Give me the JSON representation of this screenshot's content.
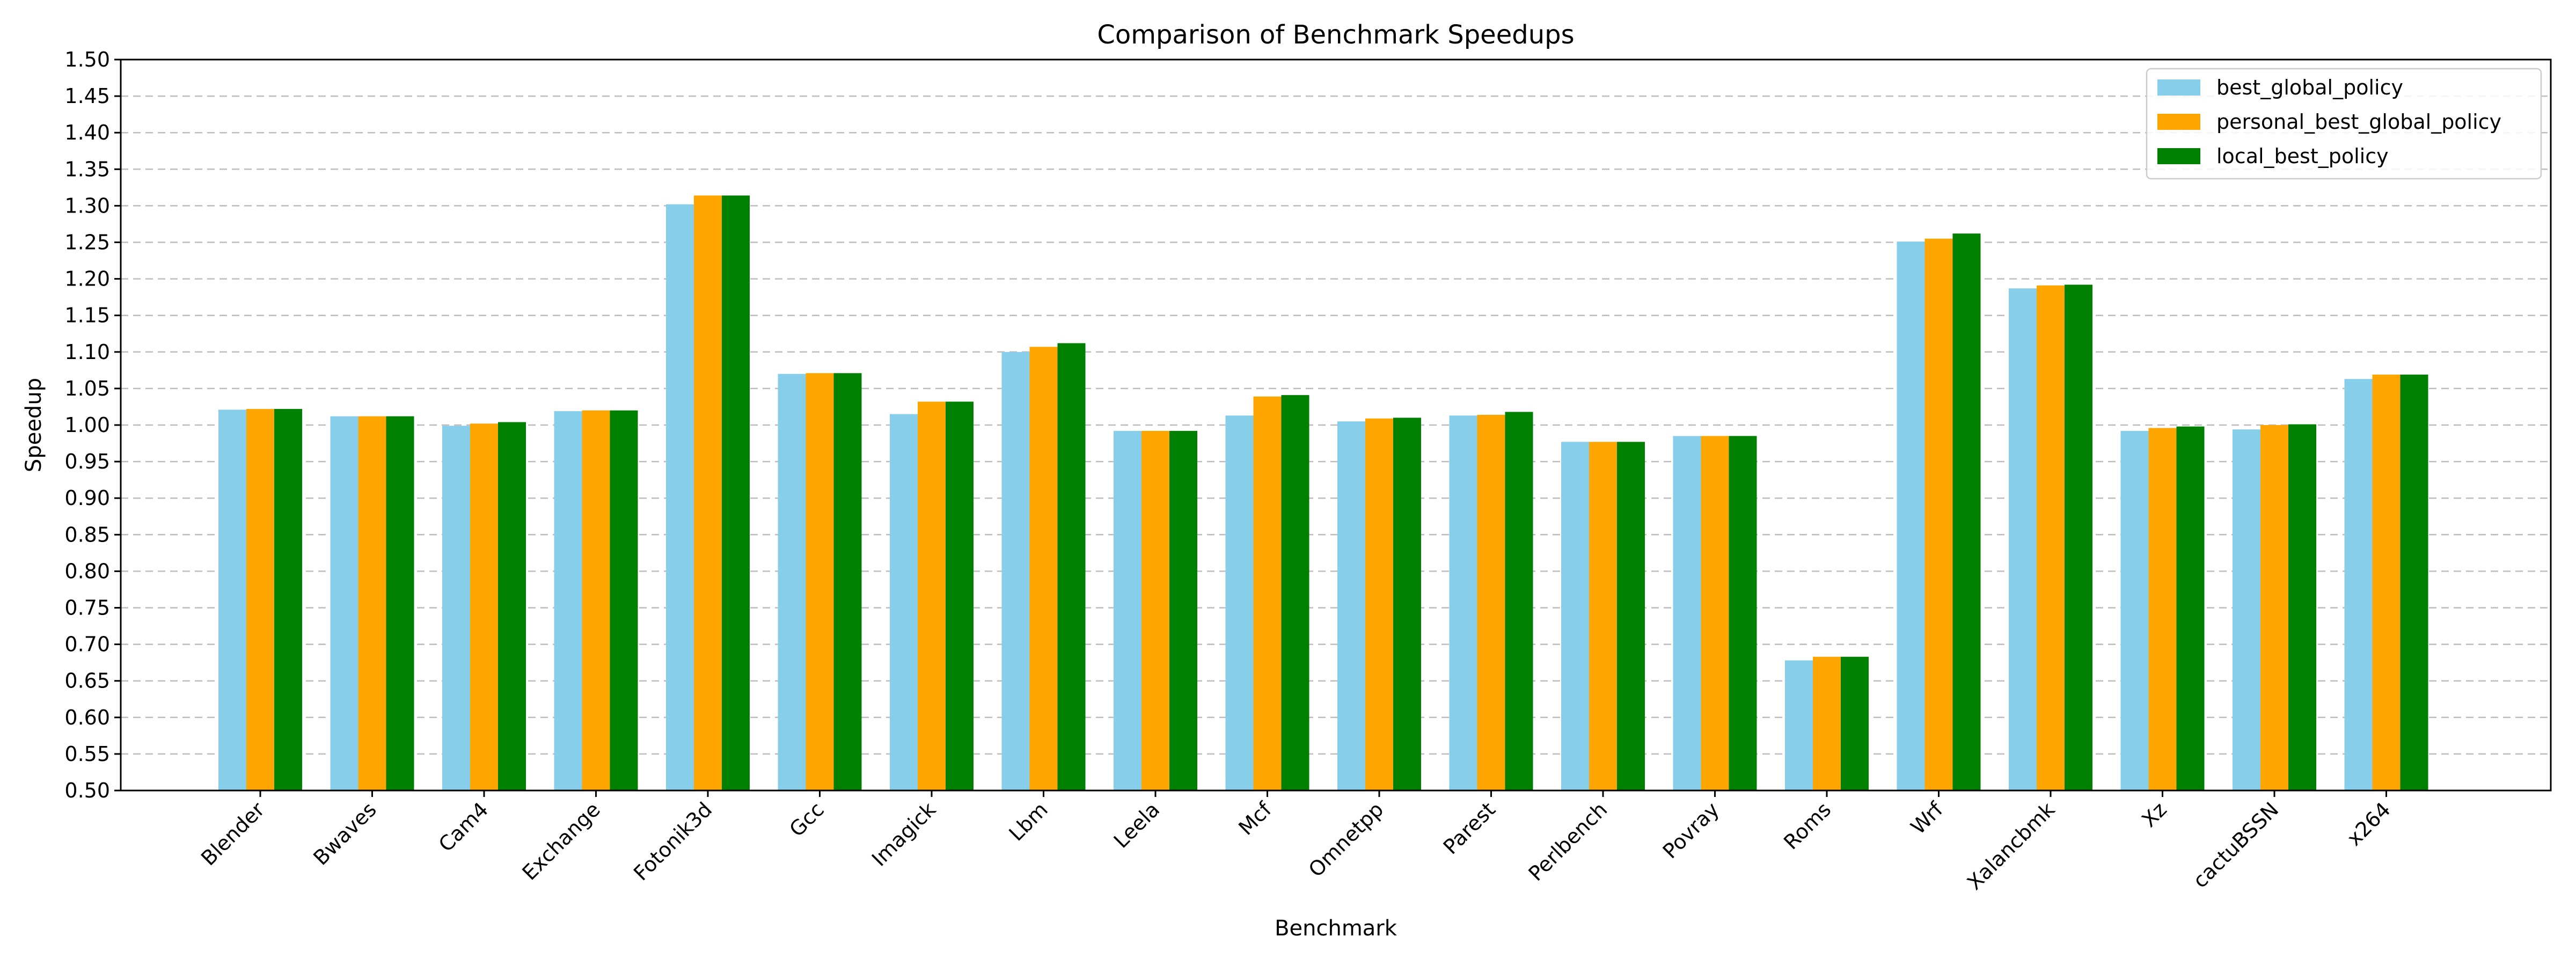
{
  "chart_data": {
    "type": "bar",
    "title": "Comparison of Benchmark Speedups",
    "xlabel": "Benchmark",
    "ylabel": "Speedup",
    "ylim": [
      0.5,
      1.5
    ],
    "y_tick_step": 0.05,
    "grid": "y-dashed",
    "legend_position": "top-right",
    "categories": [
      "Blender",
      "Bwaves",
      "Cam4",
      "Exchange",
      "Fotonik3d",
      "Gcc",
      "Imagick",
      "Lbm",
      "Leela",
      "Mcf",
      "Omnetpp",
      "Parest",
      "Perlbench",
      "Povray",
      "Roms",
      "Wrf",
      "Xalancbmk",
      "Xz",
      "cactuBSSN",
      "x264"
    ],
    "series": [
      {
        "name": "best_global_policy",
        "color": "#87CEEB",
        "values": [
          1.021,
          1.012,
          0.999,
          1.019,
          1.302,
          1.07,
          1.015,
          1.1,
          0.992,
          1.013,
          1.005,
          1.013,
          0.977,
          0.985,
          0.678,
          1.251,
          1.187,
          0.992,
          0.994,
          1.063
        ]
      },
      {
        "name": "personal_best_global_policy",
        "color": "#FFA500",
        "values": [
          1.022,
          1.012,
          1.002,
          1.02,
          1.314,
          1.071,
          1.032,
          1.107,
          0.992,
          1.039,
          1.009,
          1.014,
          0.977,
          0.985,
          0.683,
          1.255,
          1.191,
          0.996,
          1.0,
          1.069
        ]
      },
      {
        "name": "local_best_policy",
        "color": "#008000",
        "values": [
          1.022,
          1.012,
          1.004,
          1.02,
          1.314,
          1.071,
          1.032,
          1.112,
          0.992,
          1.041,
          1.01,
          1.018,
          0.977,
          0.985,
          0.683,
          1.262,
          1.192,
          0.998,
          1.001,
          1.069
        ]
      }
    ]
  }
}
